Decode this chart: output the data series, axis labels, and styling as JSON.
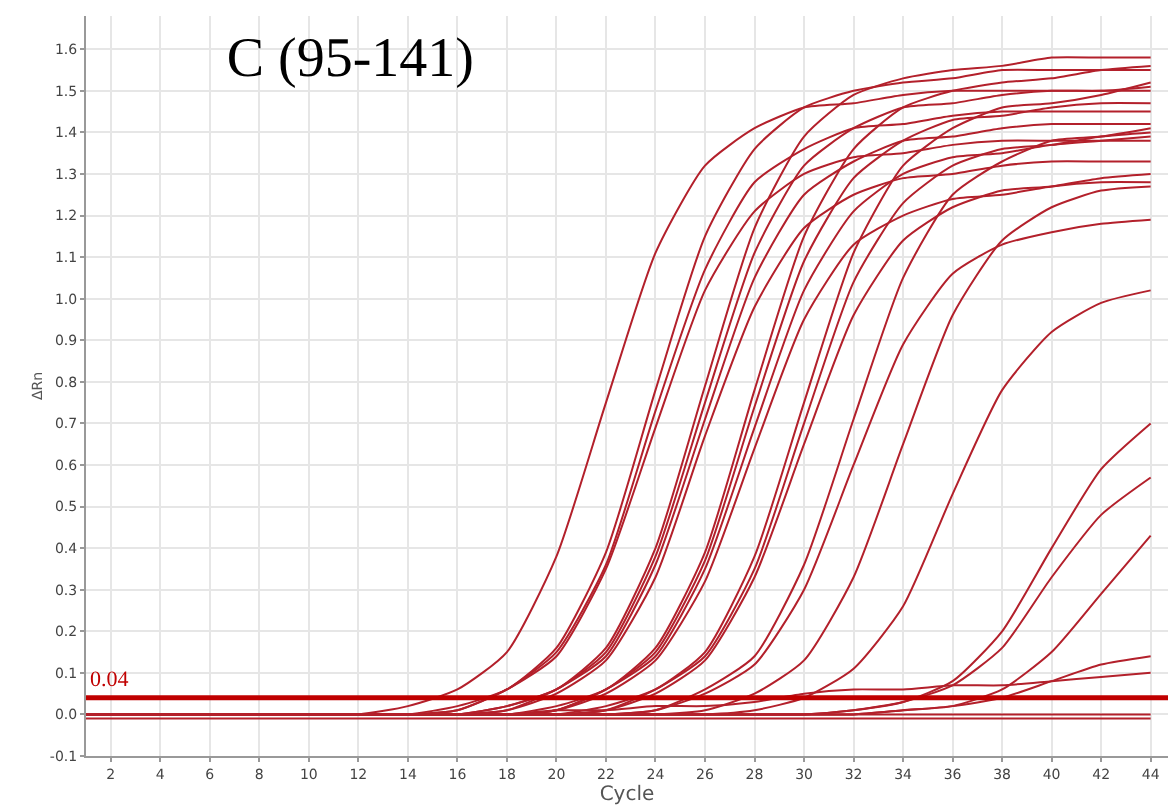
{
  "chart_data": {
    "type": "line",
    "title": "C (95-141)",
    "xlabel": "Cycle",
    "ylabel": "ΔRn",
    "color": "#b3202b",
    "grid": true,
    "marker": "none",
    "line_style": "solid",
    "x": [
      1,
      4,
      8,
      12,
      14,
      16,
      18,
      20,
      22,
      24,
      26,
      28,
      30,
      32,
      34,
      36,
      38,
      40,
      42,
      44
    ],
    "xlim": [
      1,
      44.7
    ],
    "xticks": [
      2,
      4,
      6,
      8,
      10,
      12,
      14,
      16,
      18,
      20,
      22,
      24,
      26,
      28,
      30,
      32,
      34,
      36,
      38,
      40,
      42,
      44
    ],
    "ylim": [
      -0.1,
      1.68
    ],
    "yticks": [
      -0.1,
      {
        "value": 0,
        "label": "0.0"
      },
      0.1,
      0.2,
      0.3,
      0.4,
      0.5,
      0.6,
      0.7,
      0.8,
      0.9,
      {
        "value": 1,
        "label": "1.0"
      },
      1.1,
      1.2,
      1.3,
      1.4,
      1.5,
      1.6
    ],
    "ref_lines": [
      {
        "axis": "y",
        "value": 0.04,
        "label": "0.04",
        "color": "#c00000"
      }
    ],
    "series": [
      {
        "values": [
          0,
          0,
          0,
          0,
          0.02,
          0.06,
          0.15,
          0.38,
          0.75,
          1.11,
          1.32,
          1.41,
          1.46,
          1.47,
          1.49,
          1.5,
          1.5,
          1.5,
          1.5,
          1.5
        ]
      },
      {
        "values": [
          0,
          0,
          0,
          0,
          0,
          0.02,
          0.06,
          0.16,
          0.39,
          0.78,
          1.15,
          1.36,
          1.46,
          1.5,
          1.52,
          1.53,
          1.55,
          1.55,
          1.55,
          1.55
        ]
      },
      {
        "values": [
          0,
          0,
          0,
          0,
          0,
          0.01,
          0.06,
          0.15,
          0.36,
          0.73,
          1.07,
          1.28,
          1.36,
          1.41,
          1.42,
          1.44,
          1.45,
          1.45,
          1.45,
          1.45
        ]
      },
      {
        "values": [
          0,
          0,
          0,
          0,
          0,
          0.01,
          0.06,
          0.14,
          0.35,
          0.69,
          1.02,
          1.21,
          1.3,
          1.34,
          1.35,
          1.37,
          1.38,
          1.38,
          1.38,
          1.38
        ]
      },
      {
        "values": [
          0,
          0,
          0,
          0,
          0,
          0,
          0.02,
          0.06,
          0.16,
          0.4,
          0.79,
          1.17,
          1.39,
          1.49,
          1.53,
          1.55,
          1.56,
          1.58,
          1.58,
          1.58
        ]
      },
      {
        "values": [
          0,
          0,
          0,
          0,
          0,
          0,
          0.02,
          0.06,
          0.15,
          0.38,
          0.75,
          1.11,
          1.32,
          1.41,
          1.46,
          1.47,
          1.49,
          1.5,
          1.5,
          1.51
        ]
      },
      {
        "values": [
          0,
          0,
          0,
          0,
          0,
          0,
          0.01,
          0.06,
          0.14,
          0.36,
          0.71,
          1.05,
          1.25,
          1.33,
          1.38,
          1.39,
          1.41,
          1.42,
          1.42,
          1.42
        ]
      },
      {
        "values": [
          0,
          0,
          0,
          0,
          0,
          0,
          0.01,
          0.05,
          0.13,
          0.33,
          0.67,
          0.98,
          1.17,
          1.25,
          1.29,
          1.3,
          1.32,
          1.33,
          1.33,
          1.33
        ]
      },
      {
        "values": [
          0,
          0,
          0,
          0,
          0,
          0,
          0,
          0.02,
          0.06,
          0.16,
          0.39,
          0.78,
          1.15,
          1.36,
          1.46,
          1.5,
          1.52,
          1.53,
          1.55,
          1.56
        ]
      },
      {
        "values": [
          0,
          0,
          0,
          0,
          0,
          0,
          0,
          0.01,
          0.06,
          0.15,
          0.37,
          0.74,
          1.09,
          1.29,
          1.38,
          1.43,
          1.44,
          1.46,
          1.47,
          1.47
        ]
      },
      {
        "values": [
          0,
          0,
          0,
          0,
          0,
          0,
          0,
          0.01,
          0.06,
          0.14,
          0.35,
          0.69,
          1.02,
          1.21,
          1.3,
          1.34,
          1.35,
          1.37,
          1.38,
          1.39
        ]
      },
      {
        "values": [
          0,
          0,
          0,
          0,
          0,
          0,
          0,
          0.01,
          0.05,
          0.13,
          0.32,
          0.64,
          0.95,
          1.13,
          1.2,
          1.24,
          1.25,
          1.27,
          1.28,
          1.28
        ]
      },
      {
        "values": [
          0,
          0,
          0,
          0,
          0,
          0,
          0,
          0,
          0.02,
          0.06,
          0.15,
          0.38,
          0.75,
          1.11,
          1.32,
          1.41,
          1.46,
          1.47,
          1.49,
          1.52
        ]
      },
      {
        "values": [
          0,
          0,
          0,
          0,
          0,
          0,
          0,
          0,
          0.01,
          0.06,
          0.14,
          0.35,
          0.7,
          1.04,
          1.23,
          1.32,
          1.36,
          1.37,
          1.39,
          1.4
        ]
      },
      {
        "values": [
          0,
          0,
          0,
          0,
          0,
          0,
          0,
          0,
          0.01,
          0.05,
          0.13,
          0.33,
          0.65,
          0.96,
          1.14,
          1.22,
          1.26,
          1.27,
          1.29,
          1.3
        ]
      },
      {
        "values": [
          0,
          0,
          0,
          0,
          0,
          0,
          0,
          0,
          0,
          0.01,
          0.06,
          0.14,
          0.36,
          0.71,
          1.05,
          1.25,
          1.33,
          1.38,
          1.39,
          1.41
        ]
      },
      {
        "values": [
          0,
          0,
          0,
          0,
          0,
          0,
          0,
          0,
          0,
          0.01,
          0.05,
          0.12,
          0.3,
          0.6,
          0.89,
          1.06,
          1.13,
          1.16,
          1.18,
          1.19
        ]
      },
      {
        "values": [
          0,
          0,
          0,
          0,
          0,
          0,
          0,
          0,
          0,
          0,
          0.01,
          0.05,
          0.13,
          0.33,
          0.65,
          0.96,
          1.14,
          1.22,
          1.26,
          1.27
        ]
      },
      {
        "values": [
          0,
          0,
          0,
          0,
          0,
          0,
          0,
          0,
          0,
          0,
          0,
          0.01,
          0.04,
          0.11,
          0.26,
          0.53,
          0.78,
          0.92,
          0.99,
          1.02
        ]
      },
      {
        "values": [
          0,
          0,
          0,
          0,
          0,
          0,
          0,
          0,
          0,
          0,
          0,
          0,
          0,
          0.01,
          0.03,
          0.08,
          0.2,
          0.4,
          0.59,
          0.7
        ]
      },
      {
        "values": [
          0,
          0,
          0,
          0,
          0,
          0,
          0,
          0,
          0,
          0,
          0,
          0,
          0,
          0.01,
          0.03,
          0.07,
          0.16,
          0.33,
          0.48,
          0.57
        ]
      },
      {
        "values": [
          0,
          0,
          0,
          0,
          0,
          0,
          0,
          0,
          0,
          0,
          0,
          0,
          0,
          0,
          0.01,
          0.02,
          0.06,
          0.15,
          0.29,
          0.43
        ]
      },
      {
        "values": [
          0,
          0,
          0,
          0,
          0,
          0,
          0,
          0,
          0,
          0,
          0,
          0,
          0,
          0,
          0.01,
          0.02,
          0.04,
          0.08,
          0.12,
          0.14
        ]
      },
      {
        "values": [
          0,
          0,
          0,
          0,
          0,
          0,
          0,
          0.01,
          0.01,
          0.02,
          0.02,
          0.03,
          0.05,
          0.06,
          0.06,
          0.07,
          0.07,
          0.08,
          0.09,
          0.1
        ]
      },
      {
        "values": [
          0,
          0,
          0,
          0,
          0,
          0,
          0,
          0,
          0,
          0,
          0,
          0,
          0,
          0,
          0,
          0,
          0,
          0,
          0,
          0
        ]
      },
      {
        "values": [
          -0.01,
          -0.01,
          -0.01,
          -0.01,
          -0.01,
          -0.01,
          -0.01,
          -0.01,
          -0.01,
          -0.01,
          -0.01,
          -0.01,
          -0.01,
          -0.01,
          -0.01,
          -0.01,
          -0.01,
          -0.01,
          -0.01,
          -0.01
        ]
      }
    ]
  }
}
